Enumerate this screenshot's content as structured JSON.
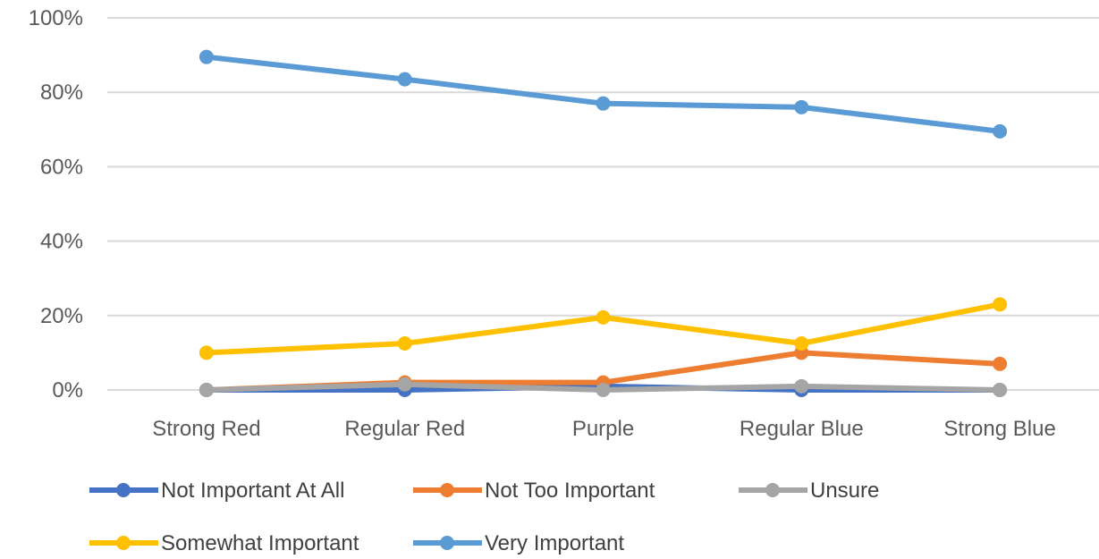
{
  "chart_data": {
    "type": "line",
    "title": "",
    "xlabel": "",
    "ylabel": "",
    "categories": [
      "Strong Red",
      "Regular Red",
      "Purple",
      "Regular Blue",
      "Strong Blue"
    ],
    "ylim": [
      0,
      100
    ],
    "y_ticks": [
      "0%",
      "20%",
      "40%",
      "60%",
      "80%",
      "100%"
    ],
    "y_tick_values": [
      0,
      20,
      40,
      60,
      80,
      100
    ],
    "grid": true,
    "legend_position": "bottom",
    "series": [
      {
        "name": "Not Important At All",
        "color": "#4472C4",
        "values": [
          0,
          0,
          1,
          0,
          0
        ]
      },
      {
        "name": "Not Too Important",
        "color": "#ED7D31",
        "values": [
          0,
          2,
          2,
          10,
          7
        ]
      },
      {
        "name": "Unsure",
        "color": "#A5A5A5",
        "values": [
          0,
          1.5,
          0,
          1,
          0
        ]
      },
      {
        "name": "Somewhat Important",
        "color": "#FFC000",
        "values": [
          10,
          12.5,
          19.5,
          12.5,
          23
        ]
      },
      {
        "name": "Very Important",
        "color": "#5B9BD5",
        "values": [
          89.5,
          83.5,
          77,
          76,
          69.5
        ]
      }
    ]
  }
}
